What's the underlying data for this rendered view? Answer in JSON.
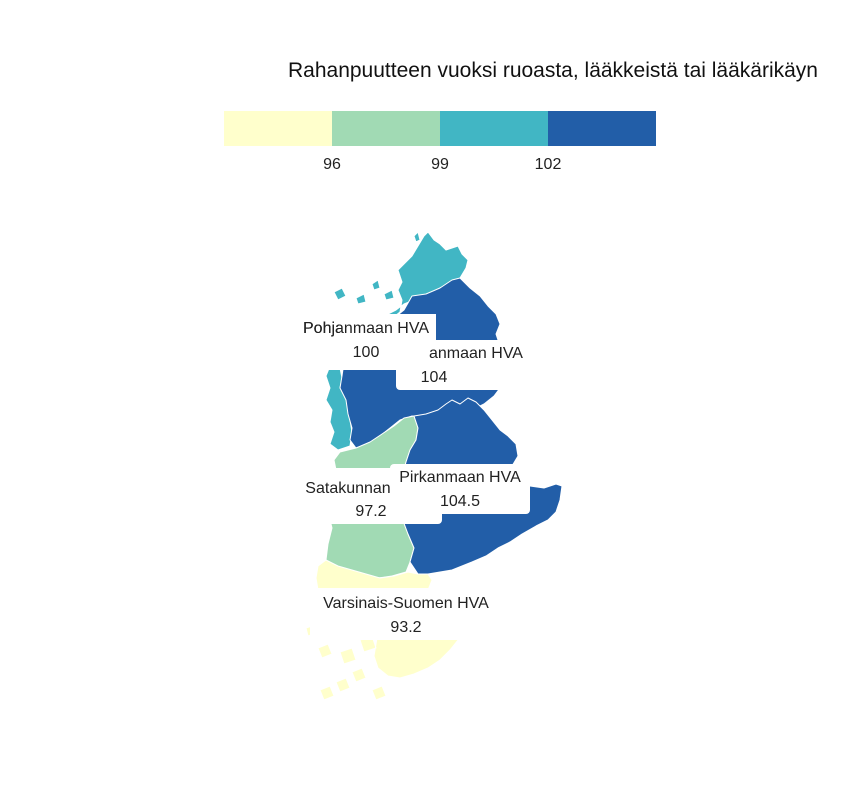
{
  "title": "Rahanpuutteen vuoksi ruoasta, lääkkeistä tai lääkärikäyn",
  "legend": {
    "breaks": [
      "96",
      "99",
      "102"
    ],
    "colors": [
      "#ffffcc",
      "#a1dab4",
      "#41b6c4",
      "#225ea8"
    ]
  },
  "regions": [
    {
      "key": "pohjanmaa",
      "name": "Pohjanmaan HVA",
      "value": "100",
      "color": "#41b6c4"
    },
    {
      "key": "etela-pohjanmaa",
      "name": "Etelä-Pohjanmaan HVA",
      "name_visible": "anmaan HVA",
      "value": "104",
      "color": "#225ea8"
    },
    {
      "key": "satakunta",
      "name": "Satakunnan HVA",
      "name_visible": "Satakunnan",
      "value": "97.2",
      "color": "#a1dab4"
    },
    {
      "key": "pirkanmaa",
      "name": "Pirkanmaan HVA",
      "value": "104.5",
      "color": "#225ea8"
    },
    {
      "key": "varsinais-suomi",
      "name": "Varsinais-Suomen HVA",
      "value": "93.2",
      "color": "#ffffcc"
    }
  ]
}
